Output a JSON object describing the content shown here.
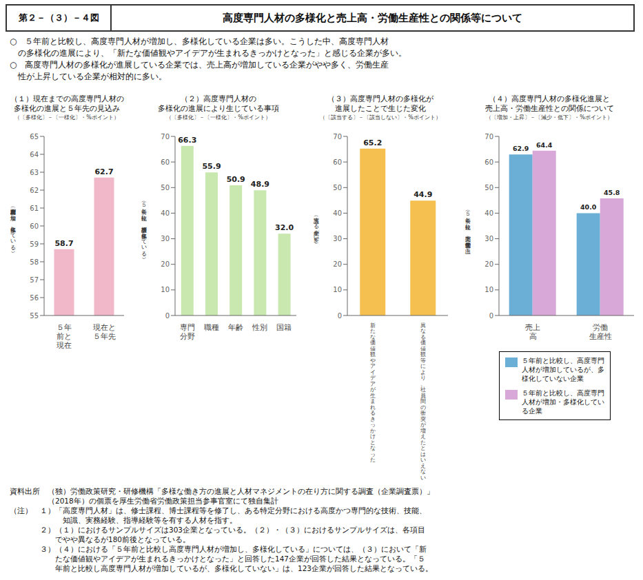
{
  "title": "高度専門人材の多様化と売上高・労働生産性との関係等について",
  "label": "第２－（３）－４図",
  "subtitle": [
    "○　５年前と比較し、高度専門人材が増加し、多様化している企業は多い。こうした中、高度専門人材",
    "　の多様化の進展により、「新たな価値観やアイデアが生まれるきっかけとなった」と感じる企業が多い。",
    "○　高度専門人材の多様化が進展している企業では、売上高が増加している企業がやや多く、労働生産",
    "　性が上昇している企業が相対的に多い。"
  ],
  "notes": [
    "資料出所　（独）労働政策研究・研修機構「多様な働き方の進展と人材マネジメントの在り方に関する調査（企業調査票）」",
    "　　　　　（2018年）の個票を厚生労働省労働政策担当参事官室にて独自集計",
    "（注）　１）「高度専門人材」は、修士課程、博士課程等を修了し、ある特定分野における高度かつ専門的な技術、技能、",
    "　　　　　　　知識、実務経験、指導経験等を有する人材を指す。",
    "　　　　２）（１）におけるサンプルサイズは303企業となっている。（２）・（３）におけるサンプルサイズは、各項目",
    "　　　　　　でやや異なるが180前後となっている。",
    "　　　　３）（４）における「５年前と比較し高度専門人材が増加し、多様化している」については、（３）において「新",
    "　　　　　　たな価値観やアイデアが生まれるきっかけとなった」と回答した147企業が回答した結果となっている。「５",
    "　　　　　　年前と比較し高度専門人材が増加しているが、多様化していない」は、123企業が回答した結果となっている。"
  ],
  "chart_data": [
    {
      "type": "bar",
      "title": "（１）現在までの高度専門人材の\n多様化の進展と５年先の見込み",
      "subtitle": "（〔多様化〕－〔一様化〕・%ポイント）",
      "ylabel": "（高度専門人材が増加し、多様化している）",
      "categories": [
        "５年\n前と\n現在",
        "現在と\n５年先"
      ],
      "values": [
        58.7,
        62.7
      ],
      "color": "#f0b8c8",
      "ylim": [
        55,
        65
      ],
      "yticks": [
        55,
        56,
        57,
        58,
        59,
        60,
        61,
        62,
        63,
        64,
        65
      ],
      "grid": false,
      "data_labels": true
    },
    {
      "type": "bar",
      "title": "（２）高度専門人材の\n多様化の進展により生じている事項",
      "subtitle": "（〔多様化〕－〔一様化〕・%ポイント）",
      "ylabel": "（５年前と比較し、該当事柄が多様化している）",
      "categories": [
        "専門\n分野",
        "職種",
        "年齢",
        "性別",
        "国籍"
      ],
      "values": [
        66.3,
        55.9,
        50.9,
        48.9,
        32.0
      ],
      "value_labels": [
        "66.3",
        "55.9",
        "50.9",
        "48.9",
        "32.0"
      ],
      "color": "#c8e8b0",
      "ylim": [
        0,
        70
      ],
      "yticks": [
        0,
        10,
        20,
        30,
        40,
        50,
        60,
        70
      ],
      "grid": false,
      "data_labels": true
    },
    {
      "type": "bar",
      "title": "（３）高度専門人材の多様化が\n進展したことで生じた変化",
      "subtitle": "（〔該当する〕－〔該当しない〕・%ポイント）",
      "ylabel": "（該当する企業が多い）",
      "categories": [
        "新\nた\nな\n価\n値\n観\nや\nア\nイ\nデ\nア\nが\n生\nま\nれ\nる\nき\nっ\nか\nけ\nと\nな\nっ\nた",
        "異\nな\nる\n価\n値\n観\n等\nに\nよ\nり\n、\n社\n員\n間\nの\n衝\n突\nが\n増\nえ\nた\nと\nは\nい\nえ\nな\nい"
      ],
      "values": [
        65.2,
        44.9
      ],
      "color": "#f5c050",
      "ylim": [
        0,
        70
      ],
      "yticks": [
        0,
        10,
        20,
        30,
        40,
        50,
        60,
        70
      ],
      "grid": false,
      "data_labels": true
    },
    {
      "type": "bar",
      "title": "（４）高度専門人材の多様化進展と\n売上高・労働生産性との関係について",
      "subtitle": "（〔増加・上昇〕－〔減少・低下〕・%ポイント）",
      "ylabel": "（５年前と比較し、売上高や労働生産性が向上）",
      "categories": [
        "売上\n高",
        "労働\n生産性"
      ],
      "series": [
        {
          "name": "５年前と比較し、高度専門\n人材が増加しているが、多\n様化していない企業",
          "color": "#6baed6",
          "values": [
            62.9,
            40.0
          ],
          "value_labels": [
            "62.9",
            "40.0"
          ]
        },
        {
          "name": "５年前と比較し、高度専門\n人材が増加・多様化してい\nる企業",
          "color": "#d8a8d8",
          "values": [
            64.4,
            45.8
          ]
        }
      ],
      "ylim": [
        0,
        70
      ],
      "yticks": [
        0,
        10,
        20,
        30,
        40,
        50,
        60,
        70
      ],
      "grid": false,
      "data_labels": true,
      "legend": "bottom"
    }
  ]
}
